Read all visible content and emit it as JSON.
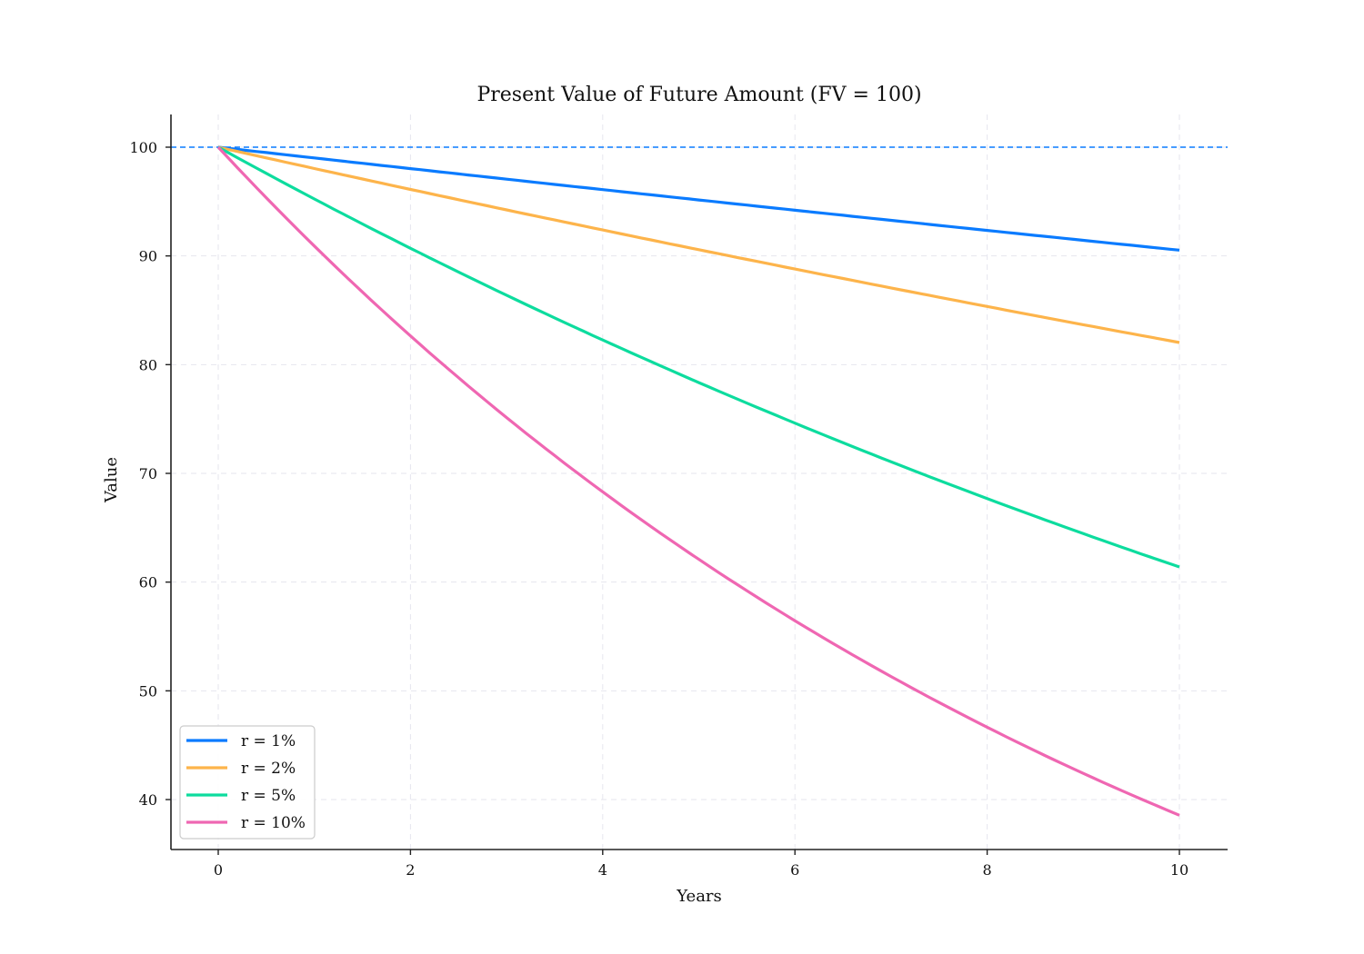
{
  "chart_data": {
    "type": "line",
    "title": "Present Value of Future Amount (FV = 100)",
    "xlabel": "Years",
    "ylabel": "Value",
    "xlim": [
      -0.5,
      10.5
    ],
    "ylim": [
      35.4,
      103.1
    ],
    "x_ticks": [
      0,
      2,
      4,
      6,
      8,
      10
    ],
    "y_ticks": [
      40,
      50,
      60,
      70,
      80,
      90,
      100
    ],
    "grid": true,
    "legend_position": "lower left",
    "x": [
      0,
      1,
      2,
      3,
      4,
      5,
      6,
      7,
      8,
      9,
      10
    ],
    "series": [
      {
        "name": "r = 1%",
        "color": "#0a7bff",
        "values": [
          100.0,
          99.01,
          98.03,
          97.06,
          96.1,
          95.15,
          94.2,
          93.27,
          92.35,
          91.43,
          90.53
        ]
      },
      {
        "name": "r = 2%",
        "color": "#fdb44b",
        "values": [
          100.0,
          98.04,
          96.12,
          94.23,
          92.38,
          90.57,
          88.8,
          87.06,
          85.35,
          83.68,
          82.03
        ]
      },
      {
        "name": "r = 5%",
        "color": "#0ddc9e",
        "values": [
          100.0,
          95.24,
          90.7,
          86.38,
          82.27,
          78.35,
          74.62,
          71.07,
          67.68,
          64.46,
          61.39
        ]
      },
      {
        "name": "r = 10%",
        "color": "#ef67b2",
        "values": [
          100.0,
          90.91,
          82.64,
          75.13,
          68.3,
          62.09,
          56.45,
          51.32,
          46.65,
          42.41,
          38.55
        ]
      }
    ],
    "reference_line": {
      "y": 100,
      "style": "dashed",
      "color": "#0a7bff"
    }
  }
}
